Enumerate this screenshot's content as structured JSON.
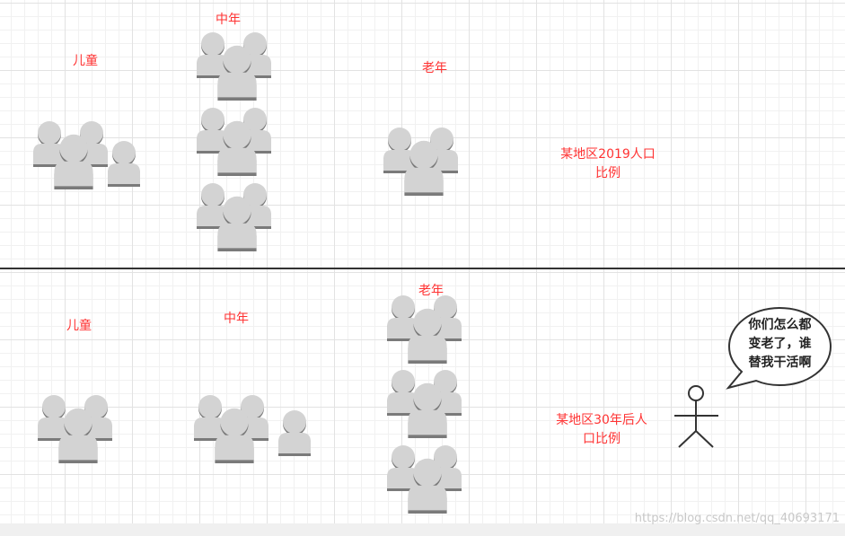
{
  "colors": {
    "label": "#ff3333",
    "icon_fill": "#d3d3d3",
    "icon_shadow": "#7a7a7a",
    "divider": "#333333"
  },
  "top": {
    "child_label": "儿童",
    "middle_label": "中年",
    "old_label": "老年",
    "caption": "某地区2019人口\n比例"
  },
  "bottom": {
    "child_label": "儿童",
    "middle_label": "中年",
    "old_label": "老年",
    "caption": "某地区30年后人\n口比例"
  },
  "speech_bubble": "你们怎么都\n变老了，谁\n替我干活啊",
  "icons": {
    "group": "people-group-icon",
    "single": "person-icon",
    "actor": "stick-figure-icon"
  },
  "watermark": "https://blog.csdn.net/qq_40693171"
}
